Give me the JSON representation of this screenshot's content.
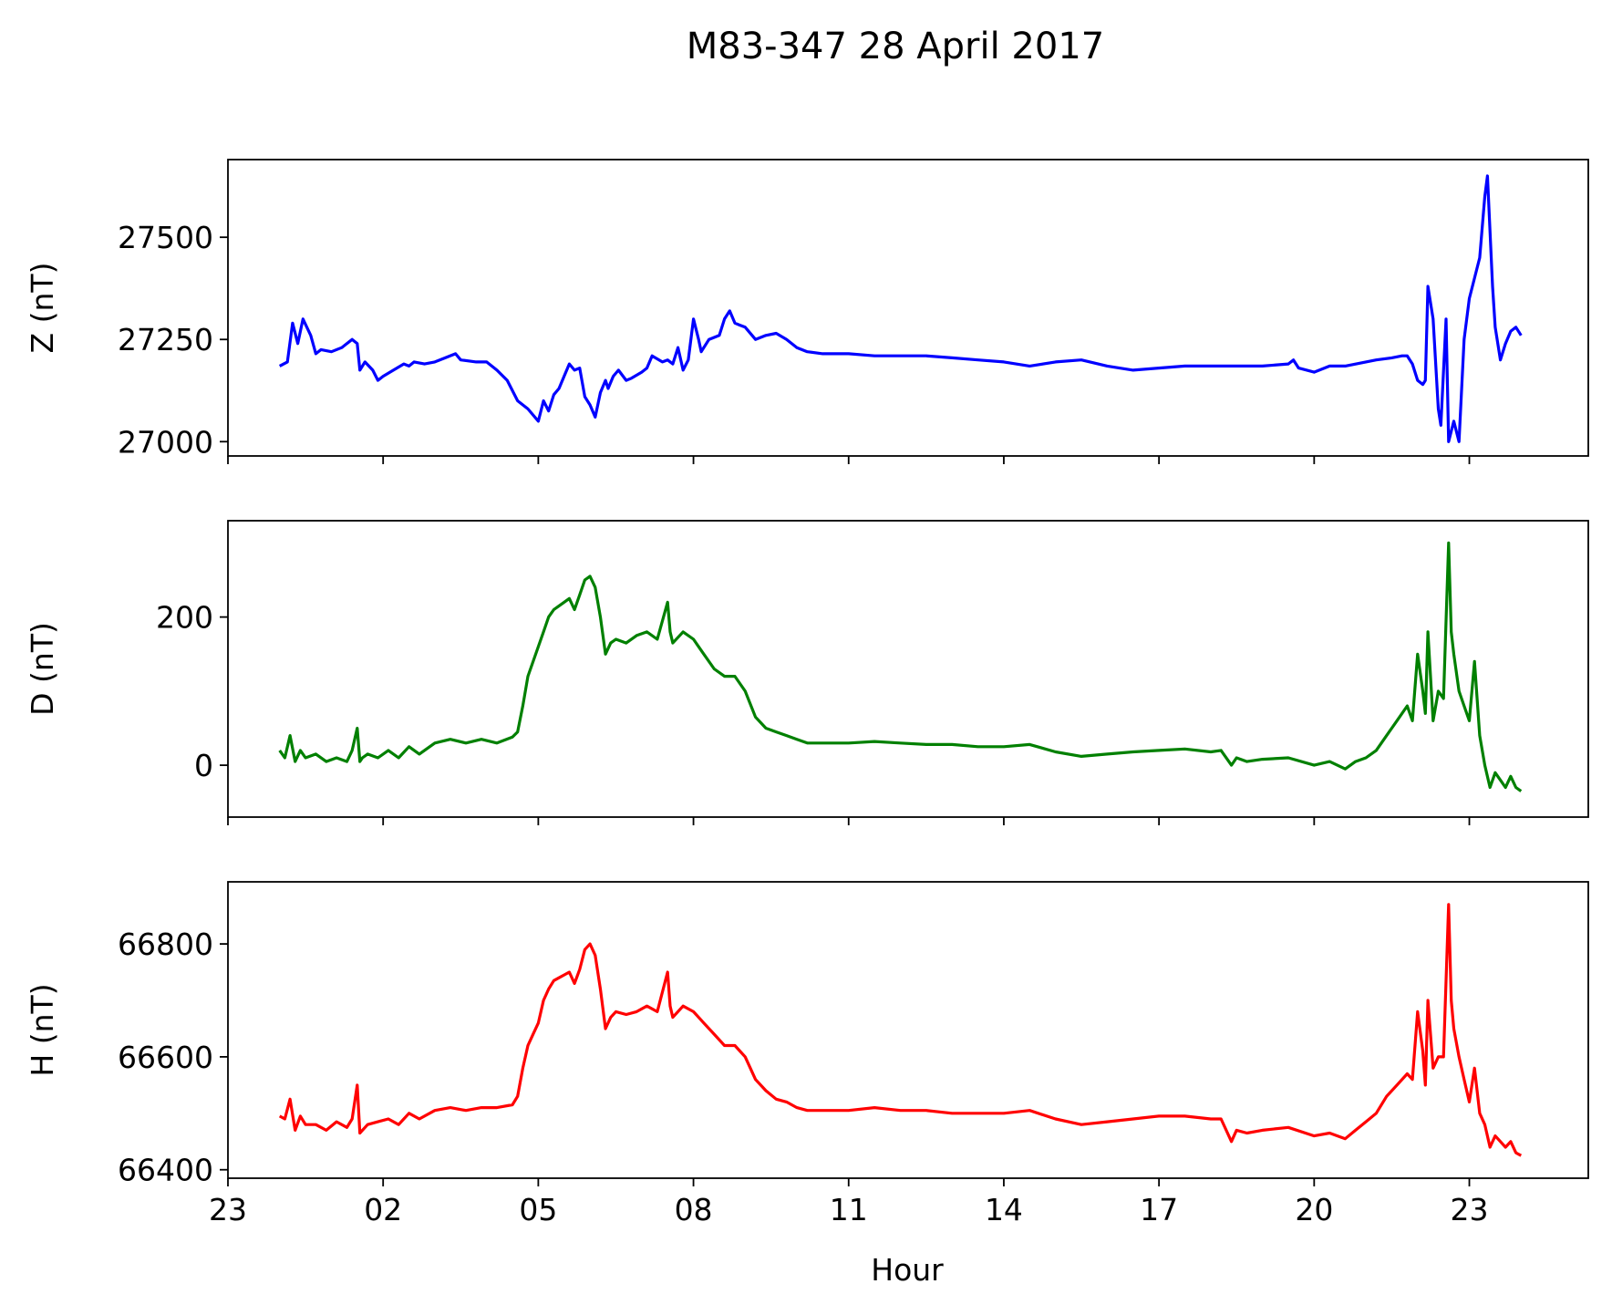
{
  "title": "M83-347 28 April 2017",
  "xlabel": "Hour",
  "x_ticks": [
    "23",
    "02",
    "05",
    "08",
    "11",
    "14",
    "17",
    "20",
    "23"
  ],
  "chart_data": [
    {
      "type": "line",
      "ylabel": "Z (nT)",
      "color": "#0000ff",
      "xlim": [
        -1.0,
        25.3
      ],
      "ylim": [
        26965,
        27690
      ],
      "yticks": [
        27000,
        27250,
        27500
      ],
      "series": [
        {
          "x": [
            0.0,
            0.15,
            0.25,
            0.35,
            0.45,
            0.6,
            0.7,
            0.8,
            1.0,
            1.2,
            1.4,
            1.5,
            1.55,
            1.65,
            1.8,
            1.9,
            2.0,
            2.2,
            2.4,
            2.5,
            2.6,
            2.8,
            3.0,
            3.2,
            3.4,
            3.5,
            3.8,
            4.0,
            4.2,
            4.4,
            4.6,
            4.8,
            5.0,
            5.1,
            5.2,
            5.3,
            5.4,
            5.5,
            5.6,
            5.7,
            5.8,
            5.9,
            6.0,
            6.1,
            6.2,
            6.3,
            6.35,
            6.45,
            6.55,
            6.7,
            6.8,
            7.0,
            7.1,
            7.2,
            7.4,
            7.5,
            7.6,
            7.7,
            7.8,
            7.9,
            8.0,
            8.1,
            8.15,
            8.2,
            8.3,
            8.4,
            8.5,
            8.6,
            8.7,
            8.8,
            8.9,
            9.0,
            9.2,
            9.4,
            9.6,
            9.8,
            10.0,
            10.2,
            10.5,
            11.0,
            11.5,
            12.0,
            12.5,
            13.0,
            13.5,
            14.0,
            14.5,
            15.0,
            15.5,
            16.0,
            16.5,
            17.0,
            17.5,
            18.0,
            18.5,
            19.0,
            19.5,
            19.6,
            19.7,
            20.0,
            20.3,
            20.6,
            21.0,
            21.2,
            21.5,
            21.7,
            21.8,
            21.9,
            22.0,
            22.1,
            22.15,
            22.2,
            22.3,
            22.4,
            22.45,
            22.55,
            22.6,
            22.7,
            22.8,
            22.9,
            23.0,
            23.1,
            23.2,
            23.3,
            23.35,
            23.45,
            23.5,
            23.6,
            23.7,
            23.8,
            23.9,
            24.0
          ],
          "values": [
            27185,
            27195,
            27290,
            27240,
            27300,
            27260,
            27215,
            27225,
            27220,
            27230,
            27250,
            27240,
            27175,
            27195,
            27175,
            27150,
            27160,
            27175,
            27190,
            27185,
            27195,
            27190,
            27195,
            27205,
            27215,
            27200,
            27195,
            27195,
            27175,
            27150,
            27100,
            27080,
            27050,
            27100,
            27075,
            27115,
            27130,
            27160,
            27190,
            27175,
            27180,
            27110,
            27090,
            27060,
            27120,
            27150,
            27130,
            27160,
            27175,
            27150,
            27155,
            27170,
            27180,
            27210,
            27195,
            27200,
            27190,
            27230,
            27175,
            27200,
            27300,
            27250,
            27220,
            27230,
            27250,
            27255,
            27260,
            27300,
            27320,
            27290,
            27285,
            27280,
            27250,
            27260,
            27265,
            27250,
            27230,
            27220,
            27215,
            27215,
            27210,
            27210,
            27210,
            27205,
            27200,
            27195,
            27185,
            27195,
            27200,
            27185,
            27175,
            27180,
            27185,
            27185,
            27185,
            27185,
            27190,
            27200,
            27180,
            27170,
            27185,
            27185,
            27195,
            27200,
            27205,
            27210,
            27210,
            27190,
            27150,
            27140,
            27150,
            27380,
            27300,
            27080,
            27040,
            27300,
            27000,
            27050,
            27000,
            27250,
            27350,
            27400,
            27450,
            27600,
            27650,
            27380,
            27280,
            27200,
            27240,
            27270,
            27280,
            27260
          ]
        }
      ]
    },
    {
      "type": "line",
      "ylabel": "D (nT)",
      "color": "#008000",
      "xlim": [
        -1.0,
        25.3
      ],
      "ylim": [
        -70,
        330
      ],
      "yticks": [
        0,
        200
      ],
      "series": [
        {
          "x": [
            0.0,
            0.1,
            0.2,
            0.3,
            0.4,
            0.5,
            0.7,
            0.9,
            1.1,
            1.3,
            1.4,
            1.5,
            1.55,
            1.6,
            1.7,
            1.9,
            2.1,
            2.3,
            2.5,
            2.7,
            3.0,
            3.3,
            3.6,
            3.9,
            4.2,
            4.5,
            4.6,
            4.7,
            4.8,
            4.9,
            5.0,
            5.1,
            5.2,
            5.3,
            5.4,
            5.5,
            5.6,
            5.7,
            5.8,
            5.9,
            6.0,
            6.1,
            6.2,
            6.3,
            6.4,
            6.5,
            6.7,
            6.9,
            7.1,
            7.3,
            7.5,
            7.55,
            7.6,
            7.8,
            8.0,
            8.2,
            8.4,
            8.6,
            8.8,
            9.0,
            9.2,
            9.4,
            9.6,
            9.8,
            10.0,
            10.2,
            10.5,
            11.0,
            11.5,
            12.0,
            12.5,
            13.0,
            13.5,
            14.0,
            14.5,
            15.0,
            15.5,
            16.0,
            16.5,
            17.0,
            17.5,
            18.0,
            18.2,
            18.4,
            18.5,
            18.7,
            19.0,
            19.5,
            20.0,
            20.3,
            20.6,
            20.8,
            21.0,
            21.2,
            21.4,
            21.6,
            21.8,
            21.9,
            22.0,
            22.1,
            22.15,
            22.2,
            22.3,
            22.4,
            22.5,
            22.6,
            22.65,
            22.7,
            22.8,
            22.9,
            23.0,
            23.1,
            23.2,
            23.3,
            23.4,
            23.5,
            23.6,
            23.7,
            23.8,
            23.9,
            24.0
          ],
          "values": [
            20,
            10,
            40,
            5,
            20,
            10,
            15,
            5,
            10,
            5,
            20,
            50,
            5,
            10,
            15,
            10,
            20,
            10,
            25,
            15,
            30,
            35,
            30,
            35,
            30,
            38,
            45,
            80,
            120,
            140,
            160,
            180,
            200,
            210,
            215,
            220,
            225,
            210,
            230,
            250,
            255,
            240,
            200,
            150,
            165,
            170,
            165,
            175,
            180,
            170,
            220,
            180,
            165,
            180,
            170,
            150,
            130,
            120,
            120,
            100,
            65,
            50,
            45,
            40,
            35,
            30,
            30,
            30,
            32,
            30,
            28,
            28,
            25,
            25,
            28,
            18,
            12,
            15,
            18,
            20,
            22,
            18,
            20,
            0,
            10,
            5,
            8,
            10,
            0,
            5,
            -5,
            5,
            10,
            20,
            40,
            60,
            80,
            60,
            150,
            100,
            70,
            180,
            60,
            100,
            90,
            300,
            180,
            150,
            100,
            80,
            60,
            140,
            40,
            0,
            -30,
            -10,
            -20,
            -30,
            -15,
            -30,
            -35
          ]
        }
      ]
    },
    {
      "type": "line",
      "ylabel": "H (nT)",
      "color": "#ff0000",
      "xlim": [
        -1.0,
        25.3
      ],
      "ylim": [
        66385,
        66910
      ],
      "yticks": [
        66400,
        66600,
        66800
      ],
      "series": [
        {
          "x": [
            0.0,
            0.1,
            0.2,
            0.3,
            0.4,
            0.5,
            0.7,
            0.9,
            1.1,
            1.3,
            1.4,
            1.5,
            1.55,
            1.6,
            1.7,
            1.9,
            2.1,
            2.3,
            2.5,
            2.7,
            3.0,
            3.3,
            3.6,
            3.9,
            4.2,
            4.5,
            4.6,
            4.7,
            4.8,
            4.9,
            5.0,
            5.1,
            5.2,
            5.3,
            5.4,
            5.5,
            5.6,
            5.7,
            5.8,
            5.9,
            6.0,
            6.1,
            6.2,
            6.3,
            6.4,
            6.5,
            6.7,
            6.9,
            7.1,
            7.3,
            7.5,
            7.55,
            7.6,
            7.8,
            8.0,
            8.2,
            8.4,
            8.6,
            8.8,
            9.0,
            9.2,
            9.4,
            9.6,
            9.8,
            10.0,
            10.2,
            10.5,
            11.0,
            11.5,
            12.0,
            12.5,
            13.0,
            13.5,
            14.0,
            14.5,
            15.0,
            15.5,
            16.0,
            16.5,
            17.0,
            17.5,
            18.0,
            18.2,
            18.4,
            18.5,
            18.7,
            19.0,
            19.5,
            20.0,
            20.3,
            20.6,
            20.8,
            21.0,
            21.2,
            21.4,
            21.6,
            21.8,
            21.9,
            22.0,
            22.1,
            22.15,
            22.2,
            22.3,
            22.4,
            22.5,
            22.6,
            22.65,
            22.7,
            22.8,
            22.9,
            23.0,
            23.1,
            23.2,
            23.3,
            23.4,
            23.5,
            23.6,
            23.7,
            23.8,
            23.9,
            24.0
          ],
          "values": [
            66495,
            66490,
            66525,
            66470,
            66495,
            66480,
            66480,
            66470,
            66485,
            66475,
            66490,
            66550,
            66465,
            66470,
            66480,
            66485,
            66490,
            66480,
            66500,
            66490,
            66505,
            66510,
            66505,
            66510,
            66510,
            66515,
            66530,
            66580,
            66620,
            66640,
            66660,
            66700,
            66720,
            66735,
            66740,
            66745,
            66750,
            66730,
            66755,
            66790,
            66800,
            66780,
            66720,
            66650,
            66670,
            66680,
            66675,
            66680,
            66690,
            66680,
            66750,
            66690,
            66670,
            66690,
            66680,
            66660,
            66640,
            66620,
            66620,
            66600,
            66560,
            66540,
            66525,
            66520,
            66510,
            66505,
            66505,
            66505,
            66510,
            66505,
            66505,
            66500,
            66500,
            66500,
            66505,
            66490,
            66480,
            66485,
            66490,
            66495,
            66495,
            66490,
            66490,
            66450,
            66470,
            66465,
            66470,
            66475,
            66460,
            66465,
            66455,
            66470,
            66485,
            66500,
            66530,
            66550,
            66570,
            66560,
            66680,
            66610,
            66550,
            66700,
            66580,
            66600,
            66600,
            66870,
            66700,
            66650,
            66600,
            66560,
            66520,
            66580,
            66500,
            66480,
            66440,
            66460,
            66450,
            66440,
            66450,
            66430,
            66425
          ]
        }
      ]
    }
  ]
}
